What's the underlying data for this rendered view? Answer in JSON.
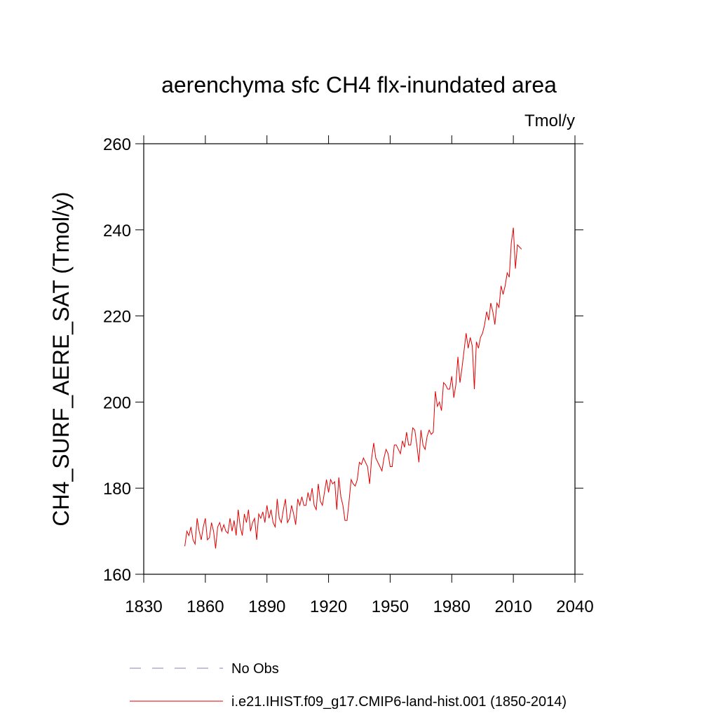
{
  "chart_data": {
    "type": "line",
    "title": "aerenchyma sfc CH4 flx-inundated area",
    "units": "Tmol/y",
    "y_label": "CH4_SURF_AERE_SAT  (Tmol/y)",
    "xlim": [
      1830,
      2040
    ],
    "xticks": [
      1830,
      1860,
      1890,
      1920,
      1950,
      1980,
      2010,
      2040
    ],
    "ylim": [
      160,
      260
    ],
    "yticks": [
      160,
      180,
      200,
      220,
      240,
      260
    ],
    "legend": [
      {
        "label": "No Obs",
        "color": "#8080c0",
        "style": "dashed"
      }
    ],
    "x": [
      1850,
      1851,
      1852,
      1853,
      1854,
      1855,
      1856,
      1857,
      1858,
      1859,
      1860,
      1861,
      1862,
      1863,
      1864,
      1865,
      1866,
      1867,
      1868,
      1869,
      1870,
      1871,
      1872,
      1873,
      1874,
      1875,
      1876,
      1877,
      1878,
      1879,
      1880,
      1881,
      1882,
      1883,
      1884,
      1885,
      1886,
      1887,
      1888,
      1889,
      1890,
      1891,
      1892,
      1893,
      1894,
      1895,
      1896,
      1897,
      1898,
      1899,
      1900,
      1901,
      1902,
      1903,
      1904,
      1905,
      1906,
      1907,
      1908,
      1909,
      1910,
      1911,
      1912,
      1913,
      1914,
      1915,
      1916,
      1917,
      1918,
      1919,
      1920,
      1921,
      1922,
      1923,
      1924,
      1925,
      1926,
      1927,
      1928,
      1929,
      1930,
      1931,
      1932,
      1933,
      1934,
      1935,
      1936,
      1937,
      1938,
      1939,
      1940,
      1941,
      1942,
      1943,
      1944,
      1945,
      1946,
      1947,
      1948,
      1949,
      1950,
      1951,
      1952,
      1953,
      1954,
      1955,
      1956,
      1957,
      1958,
      1959,
      1960,
      1961,
      1962,
      1963,
      1964,
      1965,
      1966,
      1967,
      1968,
      1969,
      1970,
      1971,
      1972,
      1973,
      1974,
      1975,
      1976,
      1977,
      1978,
      1979,
      1980,
      1981,
      1982,
      1983,
      1984,
      1985,
      1986,
      1987,
      1988,
      1989,
      1990,
      1991,
      1992,
      1993,
      1994,
      1995,
      1996,
      1997,
      1998,
      1999,
      2000,
      2001,
      2002,
      2003,
      2004,
      2005,
      2006,
      2007,
      2008,
      2009,
      2010,
      2011,
      2012,
      2013,
      2014
    ],
    "series": [
      {
        "name": "i.e21.IHIST.f09_g17.CMIP6-land-hist.001 (1850-2014)",
        "color": "#e00000",
        "values": [
          166.5,
          170,
          169,
          171,
          168,
          167,
          173,
          170,
          168,
          171,
          173,
          168,
          168.5,
          172,
          170,
          166,
          171,
          172,
          170,
          171.5,
          170,
          169.5,
          173,
          170,
          172.5,
          169,
          175,
          171,
          169,
          174,
          172,
          175,
          170,
          172,
          173,
          168,
          174,
          173,
          174.5,
          172,
          176,
          173,
          175,
          172,
          171,
          177.5,
          173,
          172,
          175,
          177.5,
          172,
          173,
          176,
          174,
          171.5,
          177.5,
          176,
          178,
          176,
          176,
          179,
          177,
          180,
          176,
          175,
          181,
          177,
          176,
          179,
          182,
          179,
          182,
          181,
          181.5,
          175,
          182.5,
          178,
          176,
          172.5,
          172.5,
          177,
          182,
          181,
          180.5,
          182,
          186,
          185.5,
          187,
          186,
          185,
          181,
          187,
          190.5,
          187,
          186,
          185,
          184,
          187,
          189,
          188,
          185,
          185,
          190,
          190,
          189,
          188,
          191,
          189.5,
          193,
          190,
          190,
          194,
          193.5,
          190,
          186,
          193.5,
          190,
          189,
          192,
          193.5,
          192.5,
          193,
          202.5,
          199,
          200,
          198,
          204.5,
          204,
          203,
          203,
          206,
          201,
          204,
          210.5,
          204.5,
          208,
          212,
          216,
          212.5,
          215,
          213,
          203,
          214,
          212.5,
          215,
          216,
          218,
          221,
          219,
          223,
          221,
          218,
          223,
          222,
          227,
          225,
          227,
          230,
          229,
          237,
          240.5,
          231,
          236.5,
          236,
          235.5
        ]
      }
    ]
  }
}
